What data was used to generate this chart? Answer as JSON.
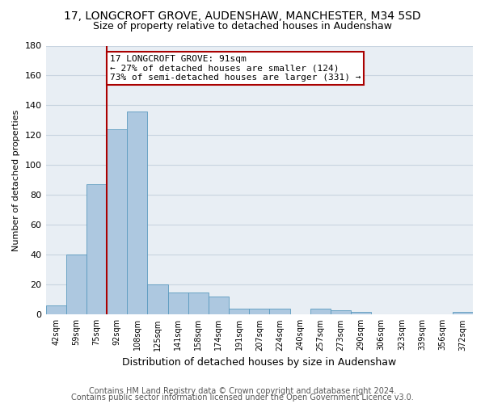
{
  "title": "17, LONGCROFT GROVE, AUDENSHAW, MANCHESTER, M34 5SD",
  "subtitle": "Size of property relative to detached houses in Audenshaw",
  "xlabel": "Distribution of detached houses by size in Audenshaw",
  "ylabel": "Number of detached properties",
  "bar_values": [
    6,
    40,
    87,
    124,
    136,
    20,
    15,
    15,
    12,
    4,
    4,
    4,
    0,
    4,
    3,
    2,
    0,
    0,
    0,
    0,
    2
  ],
  "x_labels": [
    "42sqm",
    "59sqm",
    "75sqm",
    "92sqm",
    "108sqm",
    "125sqm",
    "141sqm",
    "158sqm",
    "174sqm",
    "191sqm",
    "207sqm",
    "224sqm",
    "240sqm",
    "257sqm",
    "273sqm",
    "290sqm",
    "306sqm",
    "323sqm",
    "339sqm",
    "356sqm",
    "372sqm"
  ],
  "bar_color": "#adc8e0",
  "bar_edge_color": "#5a9abf",
  "vline_x": 2.5,
  "vline_color": "#aa0000",
  "annotation_line1": "17 LONGCROFT GROVE: 91sqm",
  "annotation_line2": "← 27% of detached houses are smaller (124)",
  "annotation_line3": "73% of semi-detached houses are larger (331) →",
  "annotation_box_edge_color": "#aa0000",
  "annotation_box_face_color": "#ffffff",
  "ylim": [
    0,
    180
  ],
  "yticks": [
    0,
    20,
    40,
    60,
    80,
    100,
    120,
    140,
    160,
    180
  ],
  "footer_line1": "Contains HM Land Registry data © Crown copyright and database right 2024.",
  "footer_line2": "Contains public sector information licensed under the Open Government Licence v3.0.",
  "background_color": "#e8eef4",
  "grid_color": "#c8d4e0",
  "title_fontsize": 10,
  "subtitle_fontsize": 9,
  "annotation_fontsize": 8,
  "footer_fontsize": 7,
  "ylabel_fontsize": 8,
  "xlabel_fontsize": 9
}
